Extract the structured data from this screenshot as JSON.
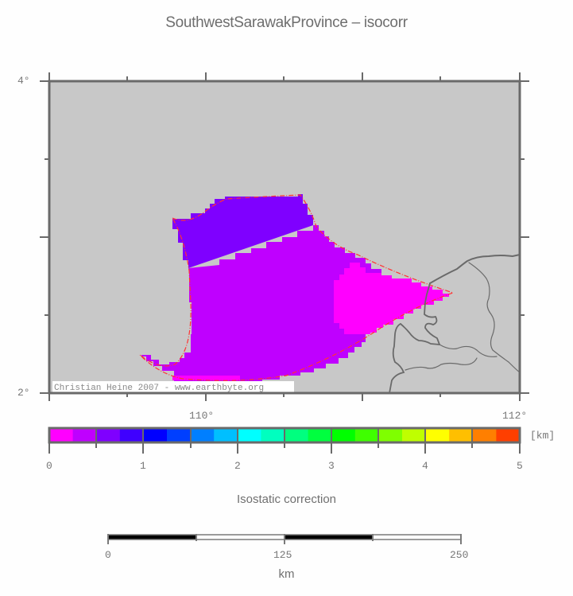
{
  "title": "SouthwestSarawakProvince – isocorr",
  "map": {
    "background_color": "#c8c8c8",
    "frame_color": "#6a6a6a",
    "lat_labels": [
      "4°",
      "2°"
    ],
    "lon_labels": [
      "110°",
      "112°"
    ],
    "credit": "Christian Heine 2007 - www.earthbyte.org",
    "polygon_outline_color": "#ff3333",
    "regions": [
      {
        "name": "northern-lobe",
        "value_km": "0.5–0.75",
        "color": "#7f00ff"
      },
      {
        "name": "central-body",
        "value_km": "0.25–0.5",
        "color": "#bf00ff"
      },
      {
        "name": "eastern-wedge",
        "value_km": "0–0.25",
        "color": "#ff00ff"
      }
    ]
  },
  "colorbar": {
    "unit": "[km]",
    "tick_labels": [
      "0",
      "1",
      "2",
      "3",
      "4",
      "5"
    ],
    "colors": [
      "#ff00ff",
      "#bf00ff",
      "#7f00ff",
      "#3f00ff",
      "#0000ff",
      "#003fff",
      "#007fff",
      "#00bfff",
      "#00ffff",
      "#00ffbf",
      "#00ff7f",
      "#00ff3f",
      "#00ff00",
      "#3fff00",
      "#7fff00",
      "#bfff00",
      "#ffff00",
      "#ffbf00",
      "#ff7f00",
      "#ff3f00"
    ],
    "title": "Isostatic correction"
  },
  "scalebar": {
    "tick_labels": [
      "0",
      "125",
      "250"
    ],
    "unit": "km"
  }
}
